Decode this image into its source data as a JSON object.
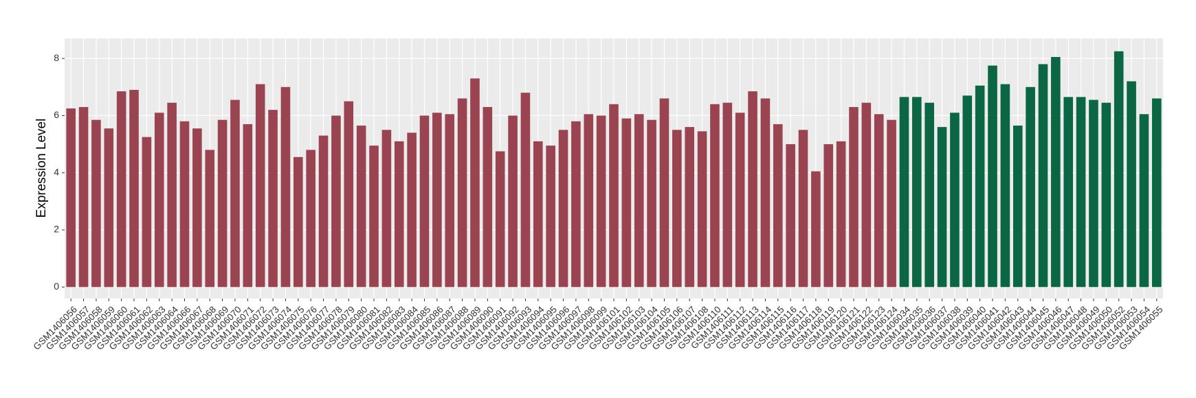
{
  "chart_data": {
    "type": "bar",
    "y_label": "Expression Level",
    "categories": [
      "GSM1406056",
      "GSM1406057",
      "GSM1406058",
      "GSM1406059",
      "GSM1406060",
      "GSM1406061",
      "GSM1406062",
      "GSM1406063",
      "GSM1406064",
      "GSM1406066",
      "GSM1406067",
      "GSM1406068",
      "GSM1406069",
      "GSM1406070",
      "GSM1406071",
      "GSM1406072",
      "GSM1406073",
      "GSM1406074",
      "GSM1406075",
      "GSM1406076",
      "GSM1406077",
      "GSM1406078",
      "GSM1406079",
      "GSM1406080",
      "GSM1406081",
      "GSM1406082",
      "GSM1406083",
      "GSM1406084",
      "GSM1406085",
      "GSM1406086",
      "GSM1406087",
      "GSM1406088",
      "GSM1406089",
      "GSM1406090",
      "GSM1406091",
      "GSM1406092",
      "GSM1406093",
      "GSM1406094",
      "GSM1406095",
      "GSM1406096",
      "GSM1406097",
      "GSM1406098",
      "GSM1406099",
      "GSM1406101",
      "GSM1406102",
      "GSM1406103",
      "GSM1406104",
      "GSM1406105",
      "GSM1406106",
      "GSM1406107",
      "GSM1406108",
      "GSM1406110",
      "GSM1406111",
      "GSM1406112",
      "GSM1406113",
      "GSM1406114",
      "GSM1406115",
      "GSM1406116",
      "GSM1406117",
      "GSM1406118",
      "GSM1406119",
      "GSM1406120",
      "GSM1406121",
      "GSM1406122",
      "GSM1406123",
      "GSM1406124",
      "GSM1406034",
      "GSM1406035",
      "GSM1406036",
      "GSM1406037",
      "GSM1406038",
      "GSM1406039",
      "GSM1406040",
      "GSM1406041",
      "GSM1406042",
      "GSM1406043",
      "GSM1406044",
      "GSM1406045",
      "GSM1406046",
      "GSM1406047",
      "GSM1406048",
      "GSM1406049",
      "GSM1406050",
      "GSM1406052",
      "GSM1406053",
      "GSM1406054",
      "GSM1406055"
    ],
    "values": [
      6.25,
      6.3,
      5.85,
      5.55,
      6.85,
      6.9,
      5.25,
      6.1,
      6.45,
      5.8,
      5.55,
      4.8,
      5.85,
      6.55,
      5.7,
      7.1,
      6.2,
      7.0,
      4.55,
      4.8,
      5.3,
      6.0,
      6.5,
      5.65,
      4.95,
      5.5,
      5.1,
      5.4,
      6.0,
      6.1,
      6.05,
      6.6,
      7.3,
      6.3,
      4.75,
      6.0,
      6.8,
      5.1,
      4.95,
      5.5,
      5.8,
      6.05,
      6.0,
      6.4,
      5.9,
      6.05,
      5.85,
      6.6,
      5.5,
      5.6,
      5.45,
      6.4,
      6.45,
      6.1,
      6.85,
      6.6,
      5.7,
      5.0,
      5.5,
      4.05,
      5.0,
      5.1,
      6.3,
      6.45,
      6.05,
      5.85,
      6.65,
      6.65,
      6.45,
      5.6,
      6.1,
      6.7,
      7.05,
      7.75,
      7.1,
      5.65,
      7.0,
      7.8,
      8.05,
      6.65,
      6.65,
      6.55,
      6.45,
      8.25,
      7.2,
      6.05,
      6.6
    ],
    "bar_colors": [
      "#9b4451",
      "#9b4451",
      "#9b4451",
      "#9b4451",
      "#9b4451",
      "#9b4451",
      "#9b4451",
      "#9b4451",
      "#9b4451",
      "#9b4451",
      "#9b4451",
      "#9b4451",
      "#9b4451",
      "#9b4451",
      "#9b4451",
      "#9b4451",
      "#9b4451",
      "#9b4451",
      "#9b4451",
      "#9b4451",
      "#9b4451",
      "#9b4451",
      "#9b4451",
      "#9b4451",
      "#9b4451",
      "#9b4451",
      "#9b4451",
      "#9b4451",
      "#9b4451",
      "#9b4451",
      "#9b4451",
      "#9b4451",
      "#9b4451",
      "#9b4451",
      "#9b4451",
      "#9b4451",
      "#9b4451",
      "#9b4451",
      "#9b4451",
      "#9b4451",
      "#9b4451",
      "#9b4451",
      "#9b4451",
      "#9b4451",
      "#9b4451",
      "#9b4451",
      "#9b4451",
      "#9b4451",
      "#9b4451",
      "#9b4451",
      "#9b4451",
      "#9b4451",
      "#9b4451",
      "#9b4451",
      "#9b4451",
      "#9b4451",
      "#9b4451",
      "#9b4451",
      "#9b4451",
      "#9b4451",
      "#9b4451",
      "#9b4451",
      "#9b4451",
      "#9b4451",
      "#9b4451",
      "#9b4451",
      "#0b6644",
      "#0b6644",
      "#0b6644",
      "#0b6644",
      "#0b6644",
      "#0b6644",
      "#0b6644",
      "#0b6644",
      "#0b6644",
      "#0b6644",
      "#0b6644",
      "#0b6644",
      "#0b6644",
      "#0b6644",
      "#0b6644",
      "#0b6644",
      "#0b6644",
      "#0b6644",
      "#0b6644",
      "#0b6644",
      "#0b6644"
    ],
    "ylim": [
      -0.4,
      8.7
    ],
    "yticks": [
      0,
      2,
      4,
      6,
      8
    ],
    "grid": true
  }
}
